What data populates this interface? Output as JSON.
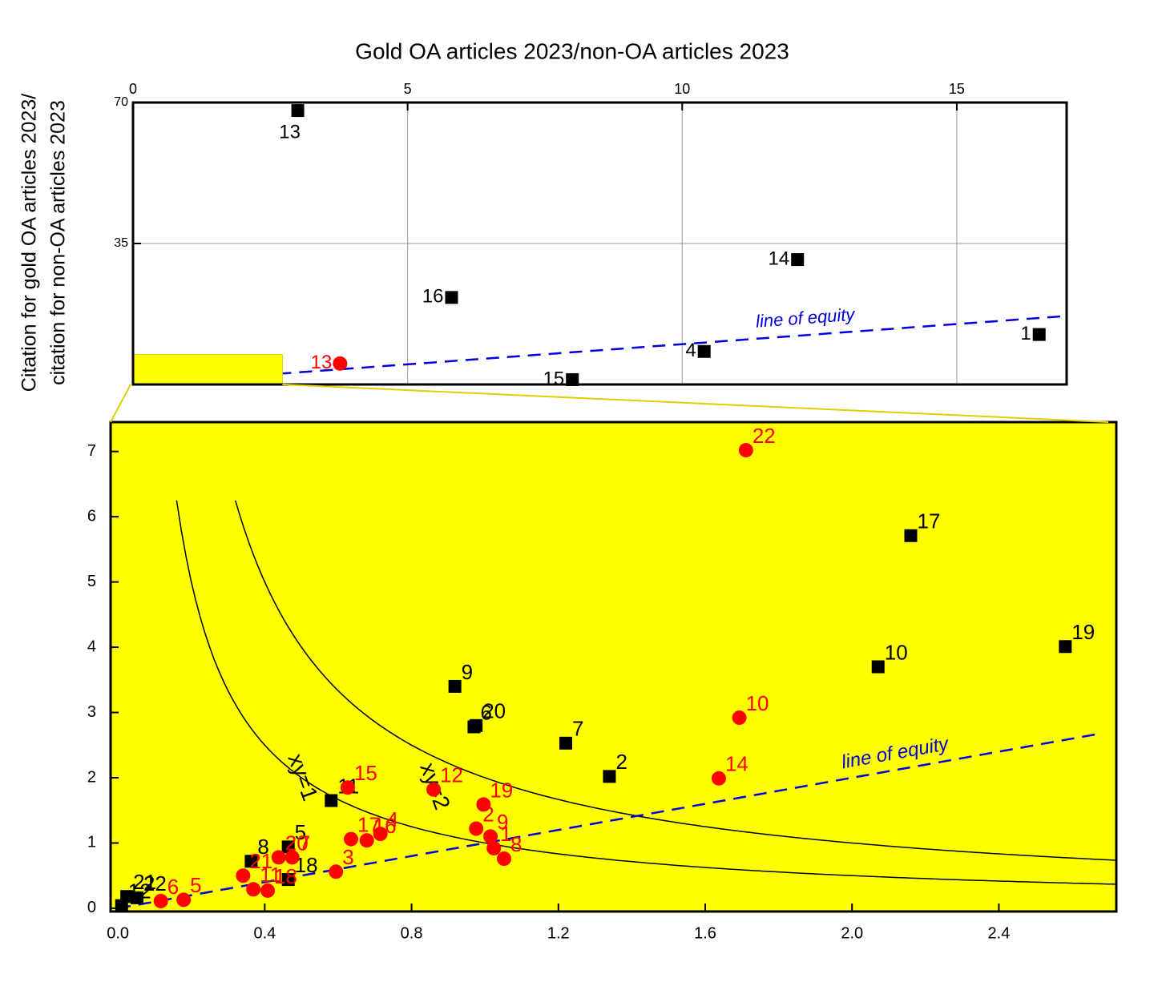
{
  "chart_data": [
    {
      "type": "scatter",
      "title": "Gold OA articles 2023/non-OA articles 2023",
      "y_label": [
        "Citation for gold OA articles 2023/",
        "citation for non-OA articles 2023"
      ],
      "xlim": [
        0,
        17
      ],
      "ylim": [
        0,
        70
      ],
      "xticks": [
        0,
        5,
        10,
        15
      ],
      "yticks": [
        35,
        70
      ],
      "grid": true,
      "reference_line": {
        "label": "line of equity",
        "slope": 1,
        "color": "#0000dd"
      },
      "annotation": "distance",
      "series": [
        {
          "marker": "square",
          "color": "#000000",
          "labels": [
            "13",
            "14",
            "16",
            "1",
            "4",
            "15"
          ],
          "x": [
            3.0,
            12.1,
            5.8,
            16.5,
            10.4,
            8.0
          ],
          "values": [
            68,
            31,
            21.6,
            12.4,
            8.2,
            1.2
          ]
        },
        {
          "marker": "circle",
          "color": "#ff0000",
          "labels": [
            "13"
          ],
          "x": [
            3.77
          ],
          "values": [
            5.2
          ]
        }
      ]
    },
    {
      "type": "scatter",
      "xlim": [
        -0.02,
        2.72
      ],
      "ylim": [
        -0.05,
        7.45
      ],
      "xticks": [
        {
          "value": 0,
          "label": "0.0"
        },
        0.4,
        0.8,
        1.2,
        1.6,
        {
          "value": 2,
          "label": "2.0"
        },
        2.4
      ],
      "yticks": [
        0,
        1,
        2,
        3,
        4,
        5,
        6,
        7
      ],
      "background": "#ffff00",
      "reference_line": {
        "label": "line of equity",
        "slope": 1,
        "color": "#0000dd"
      },
      "curves": [
        {
          "label": "xy=1",
          "k": 1,
          "color": "#000000"
        },
        {
          "label": "xy=2",
          "k": 2,
          "color": "#000000"
        }
      ],
      "series": [
        {
          "marker": "square",
          "color": "#000000",
          "labels": [
            "21",
            "22",
            "12",
            "8",
            "5",
            "18",
            "11",
            "9",
            "20",
            "6",
            "7",
            "2",
            "10",
            "17",
            "19"
          ],
          "x": [
            0.024,
            0.052,
            0.01,
            0.363,
            0.464,
            0.464,
            0.581,
            0.918,
            0.976,
            0.97,
            1.22,
            1.339,
            2.071,
            2.16,
            2.581
          ],
          "values": [
            0.18,
            0.16,
            0.04,
            0.72,
            0.94,
            0.44,
            1.65,
            3.4,
            2.8,
            2.78,
            2.53,
            2.02,
            3.7,
            5.71,
            4.01
          ]
        },
        {
          "marker": "circle",
          "color": "#ff0000",
          "labels": [
            "22",
            "10",
            "14",
            "15",
            "12",
            "19",
            "2",
            "9",
            "1",
            "8",
            "17",
            "16",
            "4",
            "20",
            "7",
            "3",
            "21",
            "11",
            "18",
            "6",
            "5"
          ],
          "x": [
            1.711,
            1.693,
            1.637,
            0.626,
            0.86,
            0.996,
            0.976,
            1.015,
            1.024,
            1.052,
            0.635,
            0.678,
            0.715,
            0.438,
            0.475,
            0.594,
            0.341,
            0.369,
            0.408,
            0.117,
            0.179
          ],
          "values": [
            7.02,
            2.92,
            1.99,
            1.85,
            1.82,
            1.59,
            1.22,
            1.1,
            0.92,
            0.76,
            1.06,
            1.04,
            1.14,
            0.78,
            0.78,
            0.56,
            0.5,
            0.29,
            0.27,
            0.11,
            0.13
          ]
        }
      ]
    }
  ]
}
